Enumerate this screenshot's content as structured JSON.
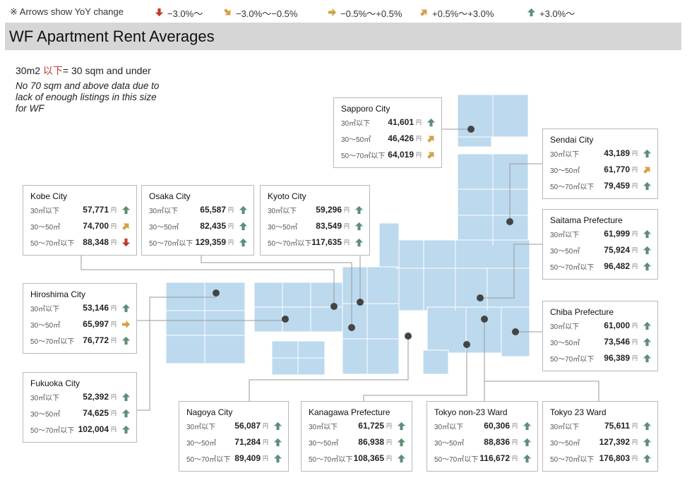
{
  "legend": {
    "note": "※ Arrows show YoY change",
    "items": [
      {
        "arrow": "down",
        "label": "−3.0%〜"
      },
      {
        "arrow": "down-right",
        "label": "−3.0%〜−0.5%"
      },
      {
        "arrow": "right",
        "label": "−0.5%〜+0.5%"
      },
      {
        "arrow": "up-right",
        "label": "+0.5%〜+3.0%"
      },
      {
        "arrow": "up",
        "label": "+3.0%〜"
      }
    ]
  },
  "title": "WF Apartment Rent Averages",
  "note_size_prefix": "30m2 ",
  "note_size_jp": "以下",
  "note_size_suffix": "= 30 sqm and under",
  "note_data": "No 70 sqm and above data due to lack of enough listings in this size for WF",
  "yen": "円",
  "colors": {
    "map": "#bcd9ee",
    "up": "#5d8f73",
    "up_right": "#d3a244",
    "right": "#d3a244",
    "down": "#c0392b",
    "box_border": "#b9b9b9"
  },
  "cities": [
    {
      "id": "sapporo",
      "name": "Sapporo City",
      "rows": [
        {
          "size": "30㎡以下",
          "value": "41,601",
          "arrow": "up"
        },
        {
          "size": "30〜50㎡",
          "value": "46,426",
          "arrow": "up-right"
        },
        {
          "size": "50〜70㎡以下",
          "value": "64,019",
          "arrow": "up-right"
        }
      ]
    },
    {
      "id": "sendai",
      "name": "Sendai City",
      "rows": [
        {
          "size": "30㎡以下",
          "value": "43,189",
          "arrow": "up"
        },
        {
          "size": "30〜50㎡",
          "value": "61,770",
          "arrow": "up-right"
        },
        {
          "size": "50〜70㎡以下",
          "value": "79,459",
          "arrow": "up"
        }
      ]
    },
    {
      "id": "kobe",
      "name": "Kobe City",
      "rows": [
        {
          "size": "30㎡以下",
          "value": "57,771",
          "arrow": "up"
        },
        {
          "size": "30〜50㎡",
          "value": "74,700",
          "arrow": "up-right"
        },
        {
          "size": "50〜70㎡以下",
          "value": "88,348",
          "arrow": "down"
        }
      ]
    },
    {
      "id": "osaka",
      "name": "Osaka City",
      "rows": [
        {
          "size": "30㎡以下",
          "value": "65,587",
          "arrow": "up"
        },
        {
          "size": "30〜50㎡",
          "value": "82,435",
          "arrow": "up"
        },
        {
          "size": "50〜70㎡以下",
          "value": "129,359",
          "arrow": "up"
        }
      ]
    },
    {
      "id": "kyoto",
      "name": "Kyoto City",
      "rows": [
        {
          "size": "30㎡以下",
          "value": "59,296",
          "arrow": "up"
        },
        {
          "size": "30〜50㎡",
          "value": "83,549",
          "arrow": "up"
        },
        {
          "size": "50〜70㎡以下",
          "value": "117,635",
          "arrow": "up"
        }
      ]
    },
    {
      "id": "saitama",
      "name": "Saitama Prefecture",
      "rows": [
        {
          "size": "30㎡以下",
          "value": "61,999",
          "arrow": "up"
        },
        {
          "size": "30〜50㎡",
          "value": "75,924",
          "arrow": "up"
        },
        {
          "size": "50〜70㎡以下",
          "value": "96,482",
          "arrow": "up"
        }
      ]
    },
    {
      "id": "hiroshima",
      "name": "Hiroshima City",
      "rows": [
        {
          "size": "30㎡以下",
          "value": "53,146",
          "arrow": "up"
        },
        {
          "size": "30〜50㎡",
          "value": "65,997",
          "arrow": "right"
        },
        {
          "size": "50〜70㎡以下",
          "value": "76,772",
          "arrow": "up"
        }
      ]
    },
    {
      "id": "chiba",
      "name": "Chiba Prefecture",
      "rows": [
        {
          "size": "30㎡以下",
          "value": "61,000",
          "arrow": "up"
        },
        {
          "size": "30〜50㎡",
          "value": "73,546",
          "arrow": "up"
        },
        {
          "size": "50〜70㎡以下",
          "value": "96,389",
          "arrow": "up"
        }
      ]
    },
    {
      "id": "fukuoka",
      "name": "Fukuoka City",
      "rows": [
        {
          "size": "30㎡以下",
          "value": "52,392",
          "arrow": "up"
        },
        {
          "size": "30〜50㎡",
          "value": "74,625",
          "arrow": "up"
        },
        {
          "size": "50〜70㎡以下",
          "value": "102,004",
          "arrow": "up"
        }
      ]
    },
    {
      "id": "nagoya",
      "name": "Nagoya City",
      "rows": [
        {
          "size": "30㎡以下",
          "value": "56,087",
          "arrow": "up"
        },
        {
          "size": "30〜50㎡",
          "value": "71,284",
          "arrow": "up"
        },
        {
          "size": "50〜70㎡以下",
          "value": "89,409",
          "arrow": "up"
        }
      ]
    },
    {
      "id": "kanagawa",
      "name": "Kanagawa Prefecture",
      "rows": [
        {
          "size": "30㎡以下",
          "value": "61,725",
          "arrow": "up"
        },
        {
          "size": "30〜50㎡",
          "value": "86,938",
          "arrow": "up"
        },
        {
          "size": "50〜70㎡以下",
          "value": "108,365",
          "arrow": "up"
        }
      ]
    },
    {
      "id": "tokyo-non23",
      "name": "Tokyo non-23 Ward",
      "rows": [
        {
          "size": "30㎡以下",
          "value": "60,306",
          "arrow": "up"
        },
        {
          "size": "30〜50㎡",
          "value": "88,836",
          "arrow": "up"
        },
        {
          "size": "50〜70㎡以下",
          "value": "116,672",
          "arrow": "up"
        }
      ]
    },
    {
      "id": "tokyo23",
      "name": "Tokyo 23 Ward",
      "rows": [
        {
          "size": "30㎡以下",
          "value": "75,611",
          "arrow": "up"
        },
        {
          "size": "30〜50㎡",
          "value": "127,392",
          "arrow": "up"
        },
        {
          "size": "50〜70㎡以下",
          "value": "176,803",
          "arrow": "up"
        }
      ]
    }
  ]
}
